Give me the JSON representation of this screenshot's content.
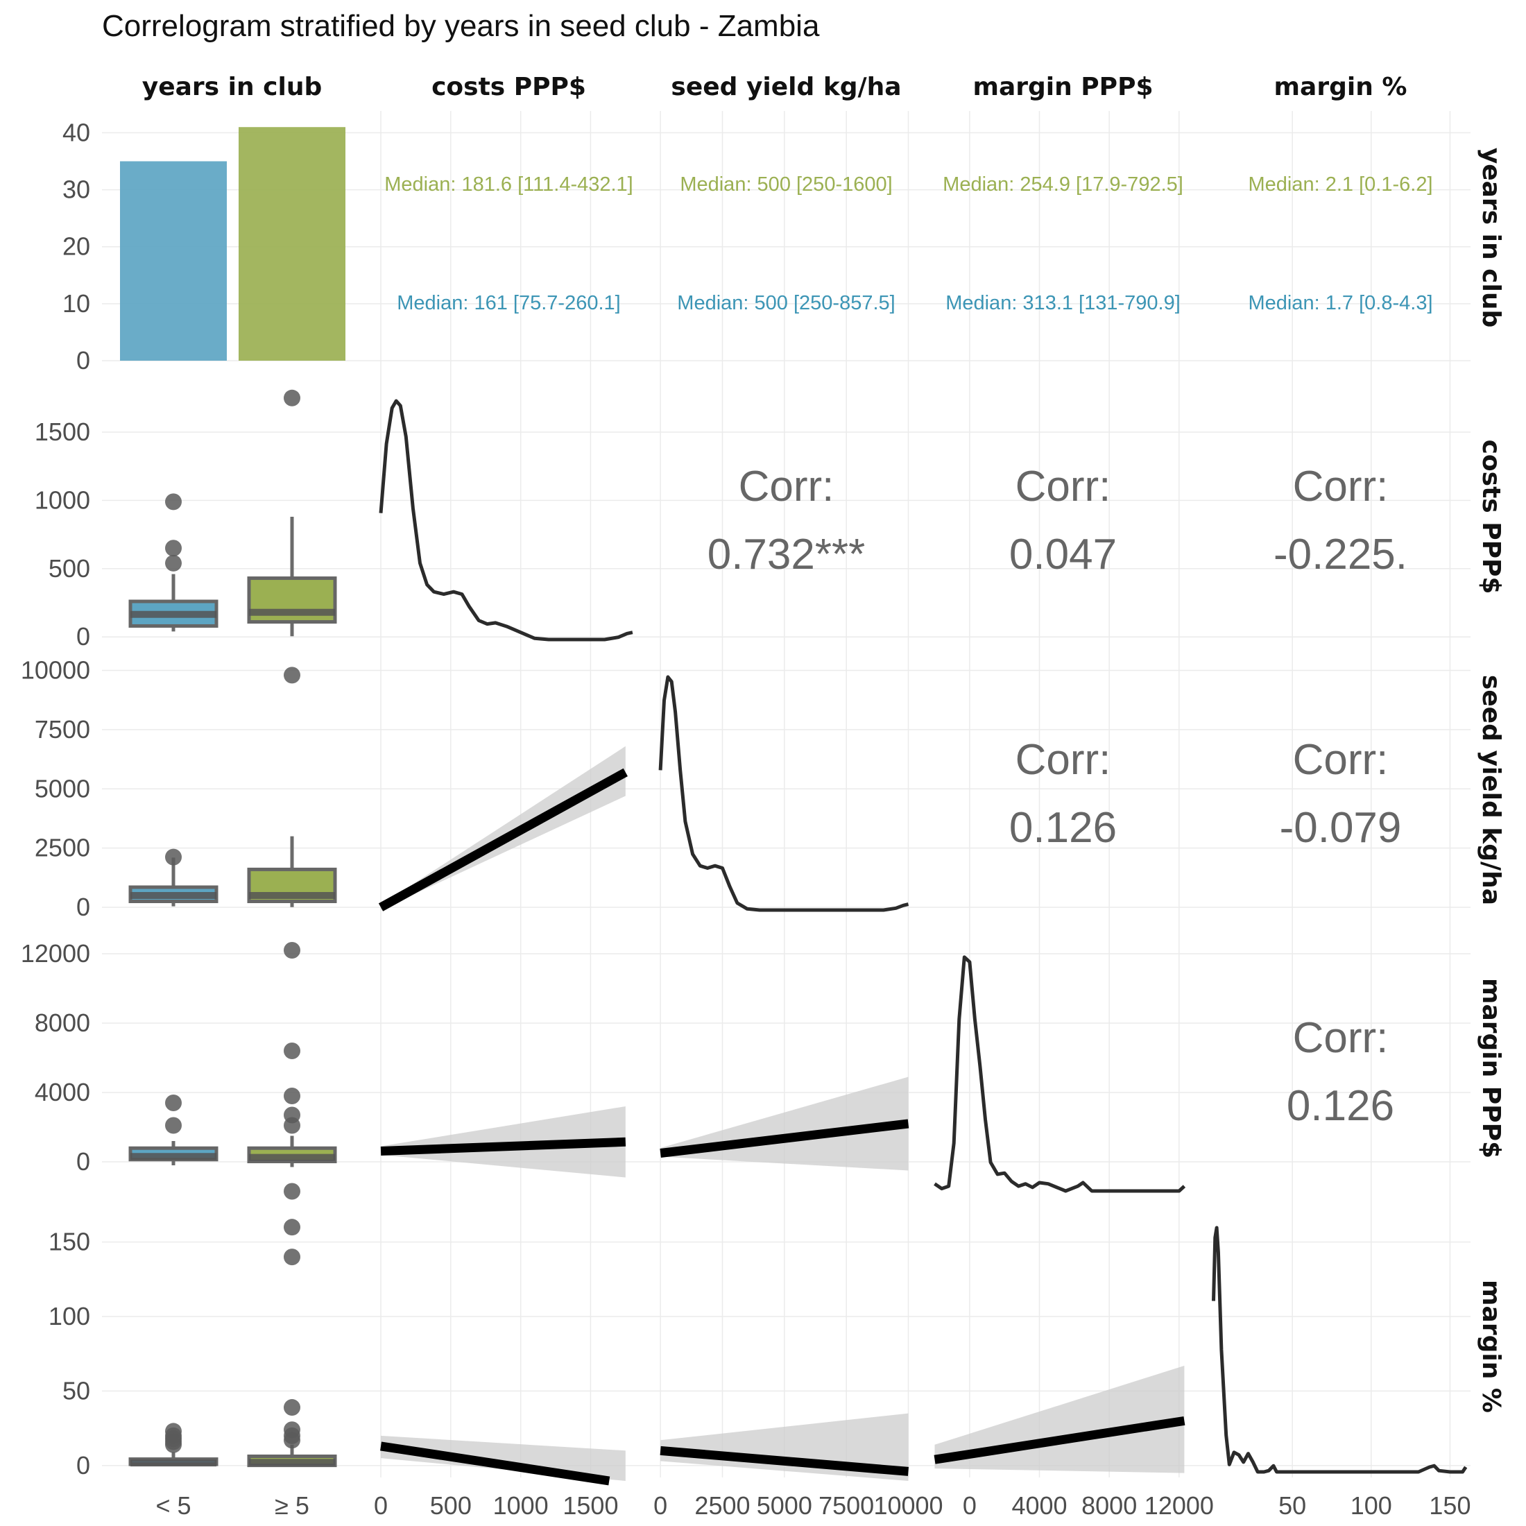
{
  "chart_data": {
    "type": "scatter",
    "title": "Correlogram stratified by years in seed club - Zambia",
    "variables": [
      "years in club",
      "costs PPP$",
      "seed yield kg/ha",
      "margin PPP$",
      "margin %"
    ],
    "groups": [
      {
        "name": "< 5",
        "color": "#5da5c3"
      },
      {
        "name": "≥ 5",
        "color": "#9bb052"
      }
    ],
    "group_counts": {
      "values": [
        35,
        41
      ],
      "ylim": [
        0,
        42
      ],
      "ticks": [
        0,
        10,
        20,
        30,
        40
      ]
    },
    "medians": [
      {
        "variable": "costs PPP$",
        "group_ge5": "Median: 181.6 [111.4-432.1]",
        "group_lt5": "Median: 161 [75.7-260.1]"
      },
      {
        "variable": "seed yield kg/ha",
        "group_ge5": "Median: 500 [250-1600]",
        "group_lt5": "Median: 500 [250-857.5]"
      },
      {
        "variable": "margin PPP$",
        "group_ge5": "Median: 254.9 [17.9-792.5]",
        "group_lt5": "Median: 313.1 [131-790.9]"
      },
      {
        "variable": "margin %",
        "group_ge5": "Median: 2.1 [0.1-6.2]",
        "group_lt5": "Median: 1.7 [0.8-4.3]"
      }
    ],
    "correlations": [
      {
        "row": "costs PPP$",
        "col": "seed yield kg/ha",
        "label": "Corr:",
        "value": "0.732***"
      },
      {
        "row": "costs PPP$",
        "col": "margin PPP$",
        "label": "Corr:",
        "value": "0.047"
      },
      {
        "row": "costs PPP$",
        "col": "margin %",
        "label": "Corr:",
        "value": "-0.225."
      },
      {
        "row": "seed yield kg/ha",
        "col": "margin PPP$",
        "label": "Corr:",
        "value": "0.126"
      },
      {
        "row": "seed yield kg/ha",
        "col": "margin %",
        "label": "Corr:",
        "value": "-0.079"
      },
      {
        "row": "margin PPP$",
        "col": "margin %",
        "label": "Corr:",
        "value": "0.126"
      }
    ],
    "boxplots": [
      {
        "variable": "costs PPP$",
        "ylim": [
          -60,
          1820
        ],
        "ticks": [
          0,
          500,
          1000,
          1500
        ],
        "groups": [
          {
            "min": 40,
            "q1": 80,
            "median": 165,
            "q3": 260,
            "max": 460,
            "outliers": [
              540,
              650,
              990
            ]
          },
          {
            "min": 5,
            "q1": 110,
            "median": 180,
            "q3": 430,
            "max": 880,
            "outliers": [
              1750
            ]
          }
        ]
      },
      {
        "variable": "seed yield kg/ha",
        "ylim": [
          -350,
          10250
        ],
        "ticks": [
          0,
          2500,
          5000,
          7500,
          10000
        ],
        "groups": [
          {
            "min": 40,
            "q1": 250,
            "median": 500,
            "q3": 850,
            "max": 2100,
            "outliers": [
              2120
            ]
          },
          {
            "min": 10,
            "q1": 250,
            "median": 500,
            "q3": 1600,
            "max": 3000,
            "outliers": [
              9800
            ]
          }
        ]
      },
      {
        "variable": "margin PPP$",
        "ylim": [
          -2000,
          12800
        ],
        "ticks": [
          0,
          4000,
          8000,
          12000
        ],
        "groups": [
          {
            "min": -200,
            "q1": 130,
            "median": 310,
            "q3": 790,
            "max": 1200,
            "outliers": [
              2100,
              3400
            ]
          },
          {
            "min": -300,
            "q1": 20,
            "median": 255,
            "q3": 790,
            "max": 1500,
            "outliers": [
              -1700,
              2100,
              2700,
              3800,
              6400,
              12200
            ]
          }
        ]
      },
      {
        "variable": "margin %",
        "ylim": [
          -8,
          168
        ],
        "ticks": [
          0,
          50,
          100,
          150
        ],
        "groups": [
          {
            "min": 0.1,
            "q1": 0.8,
            "median": 1.7,
            "q3": 4.3,
            "max": 9,
            "outliers": [
              14,
              16,
              18,
              20,
              23
            ]
          },
          {
            "min": 0,
            "q1": 0.1,
            "median": 2.1,
            "q3": 6.2,
            "max": 14,
            "outliers": [
              17,
              20,
              24,
              39,
              140,
              160
            ]
          }
        ]
      }
    ],
    "densities": [
      {
        "variable": "costs PPP$",
        "xlim": [
          -20,
          1850
        ],
        "xticks": [
          0,
          500,
          1000,
          1500
        ],
        "x": [
          0,
          40,
          80,
          110,
          140,
          180,
          230,
          280,
          330,
          380,
          450,
          520,
          580,
          630,
          700,
          760,
          820,
          900,
          1000,
          1100,
          1200,
          1400,
          1600,
          1700,
          1760,
          1800
        ],
        "y": [
          0.53,
          0.82,
          0.97,
          1.0,
          0.98,
          0.85,
          0.55,
          0.32,
          0.23,
          0.2,
          0.19,
          0.2,
          0.19,
          0.14,
          0.08,
          0.065,
          0.07,
          0.055,
          0.03,
          0.005,
          0.0,
          0.0,
          0.0,
          0.01,
          0.025,
          0.03
        ]
      },
      {
        "variable": "seed yield kg/ha",
        "xlim": [
          -200,
          10350
        ],
        "xticks": [
          0,
          2500,
          5000,
          7500,
          10000
        ],
        "x": [
          0,
          150,
          300,
          450,
          600,
          800,
          1000,
          1300,
          1600,
          1900,
          2200,
          2500,
          2800,
          3100,
          3500,
          4000,
          6000,
          8000,
          9000,
          9500,
          9800,
          10000
        ],
        "y": [
          0.6,
          0.9,
          1.0,
          0.98,
          0.85,
          0.6,
          0.38,
          0.24,
          0.19,
          0.18,
          0.19,
          0.18,
          0.1,
          0.03,
          0.005,
          0.0,
          0.0,
          0.0,
          0.0,
          0.008,
          0.02,
          0.025
        ]
      },
      {
        "variable": "margin PPP$",
        "xlim": [
          -2100,
          12800
        ],
        "xticks": [
          0,
          4000,
          8000,
          12000
        ],
        "x": [
          -2000,
          -1600,
          -1200,
          -900,
          -600,
          -300,
          0,
          300,
          600,
          900,
          1200,
          1600,
          2000,
          2400,
          2800,
          3200,
          3600,
          4000,
          4500,
          5500,
          6200,
          6500,
          7000,
          9000,
          11000,
          12000,
          12300
        ],
        "y": [
          0.03,
          0.01,
          0.02,
          0.2,
          0.72,
          0.98,
          0.96,
          0.72,
          0.52,
          0.3,
          0.12,
          0.07,
          0.075,
          0.04,
          0.02,
          0.03,
          0.015,
          0.035,
          0.03,
          0.0,
          0.02,
          0.035,
          0.0,
          0.0,
          0.0,
          0.0,
          0.02
        ]
      },
      {
        "variable": "margin %",
        "xlim": [
          -2,
          163
        ],
        "xticks": [
          50,
          100,
          150
        ],
        "x": [
          0,
          1,
          2,
          3,
          5,
          8,
          10,
          13,
          16,
          19,
          22,
          25,
          28,
          32,
          35,
          38,
          40,
          45,
          60,
          100,
          130,
          137,
          140,
          143,
          150,
          158,
          160
        ],
        "y": [
          0.7,
          0.96,
          1.0,
          0.9,
          0.5,
          0.15,
          0.03,
          0.08,
          0.07,
          0.04,
          0.075,
          0.04,
          0.0,
          0.0,
          0.005,
          0.025,
          0.0,
          0.0,
          0.0,
          0.0,
          0.0,
          0.02,
          0.025,
          0.005,
          0.0,
          0.0,
          0.02
        ]
      }
    ],
    "regressions": [
      {
        "row": "seed yield kg/ha",
        "col": "costs PPP$",
        "x0": 0,
        "x1": 1750,
        "y0": 0,
        "y1": 5700,
        "ci0": [
          -100,
          100
        ],
        "ci1": [
          4700,
          6800
        ]
      },
      {
        "row": "margin PPP$",
        "col": "costs PPP$",
        "x0": 0,
        "x1": 1750,
        "y0": 620,
        "y1": 1150,
        "ci0": [
          400,
          900
        ],
        "ci1": [
          -900,
          3200
        ]
      },
      {
        "row": "margin PPP$",
        "col": "seed yield kg/ha",
        "x0": 0,
        "x1": 10000,
        "y0": 500,
        "y1": 2200,
        "ci0": [
          300,
          800
        ],
        "ci1": [
          -500,
          4900
        ]
      },
      {
        "row": "margin %",
        "col": "costs PPP$",
        "x0": 0,
        "x1": 1750,
        "y0": 13,
        "y1": -12,
        "ci0": [
          5,
          20
        ],
        "ci1": [
          -30,
          10
        ]
      },
      {
        "row": "margin %",
        "col": "seed yield kg/ha",
        "x0": 0,
        "x1": 10000,
        "y0": 10,
        "y1": -4,
        "ci0": [
          3,
          17
        ],
        "ci1": [
          -40,
          35
        ]
      },
      {
        "row": "margin %",
        "col": "margin PPP$",
        "x0": -2000,
        "x1": 12300,
        "y0": 4,
        "y1": 30,
        "ci0": [
          -2,
          14
        ],
        "ci1": [
          -5,
          67
        ]
      }
    ]
  }
}
